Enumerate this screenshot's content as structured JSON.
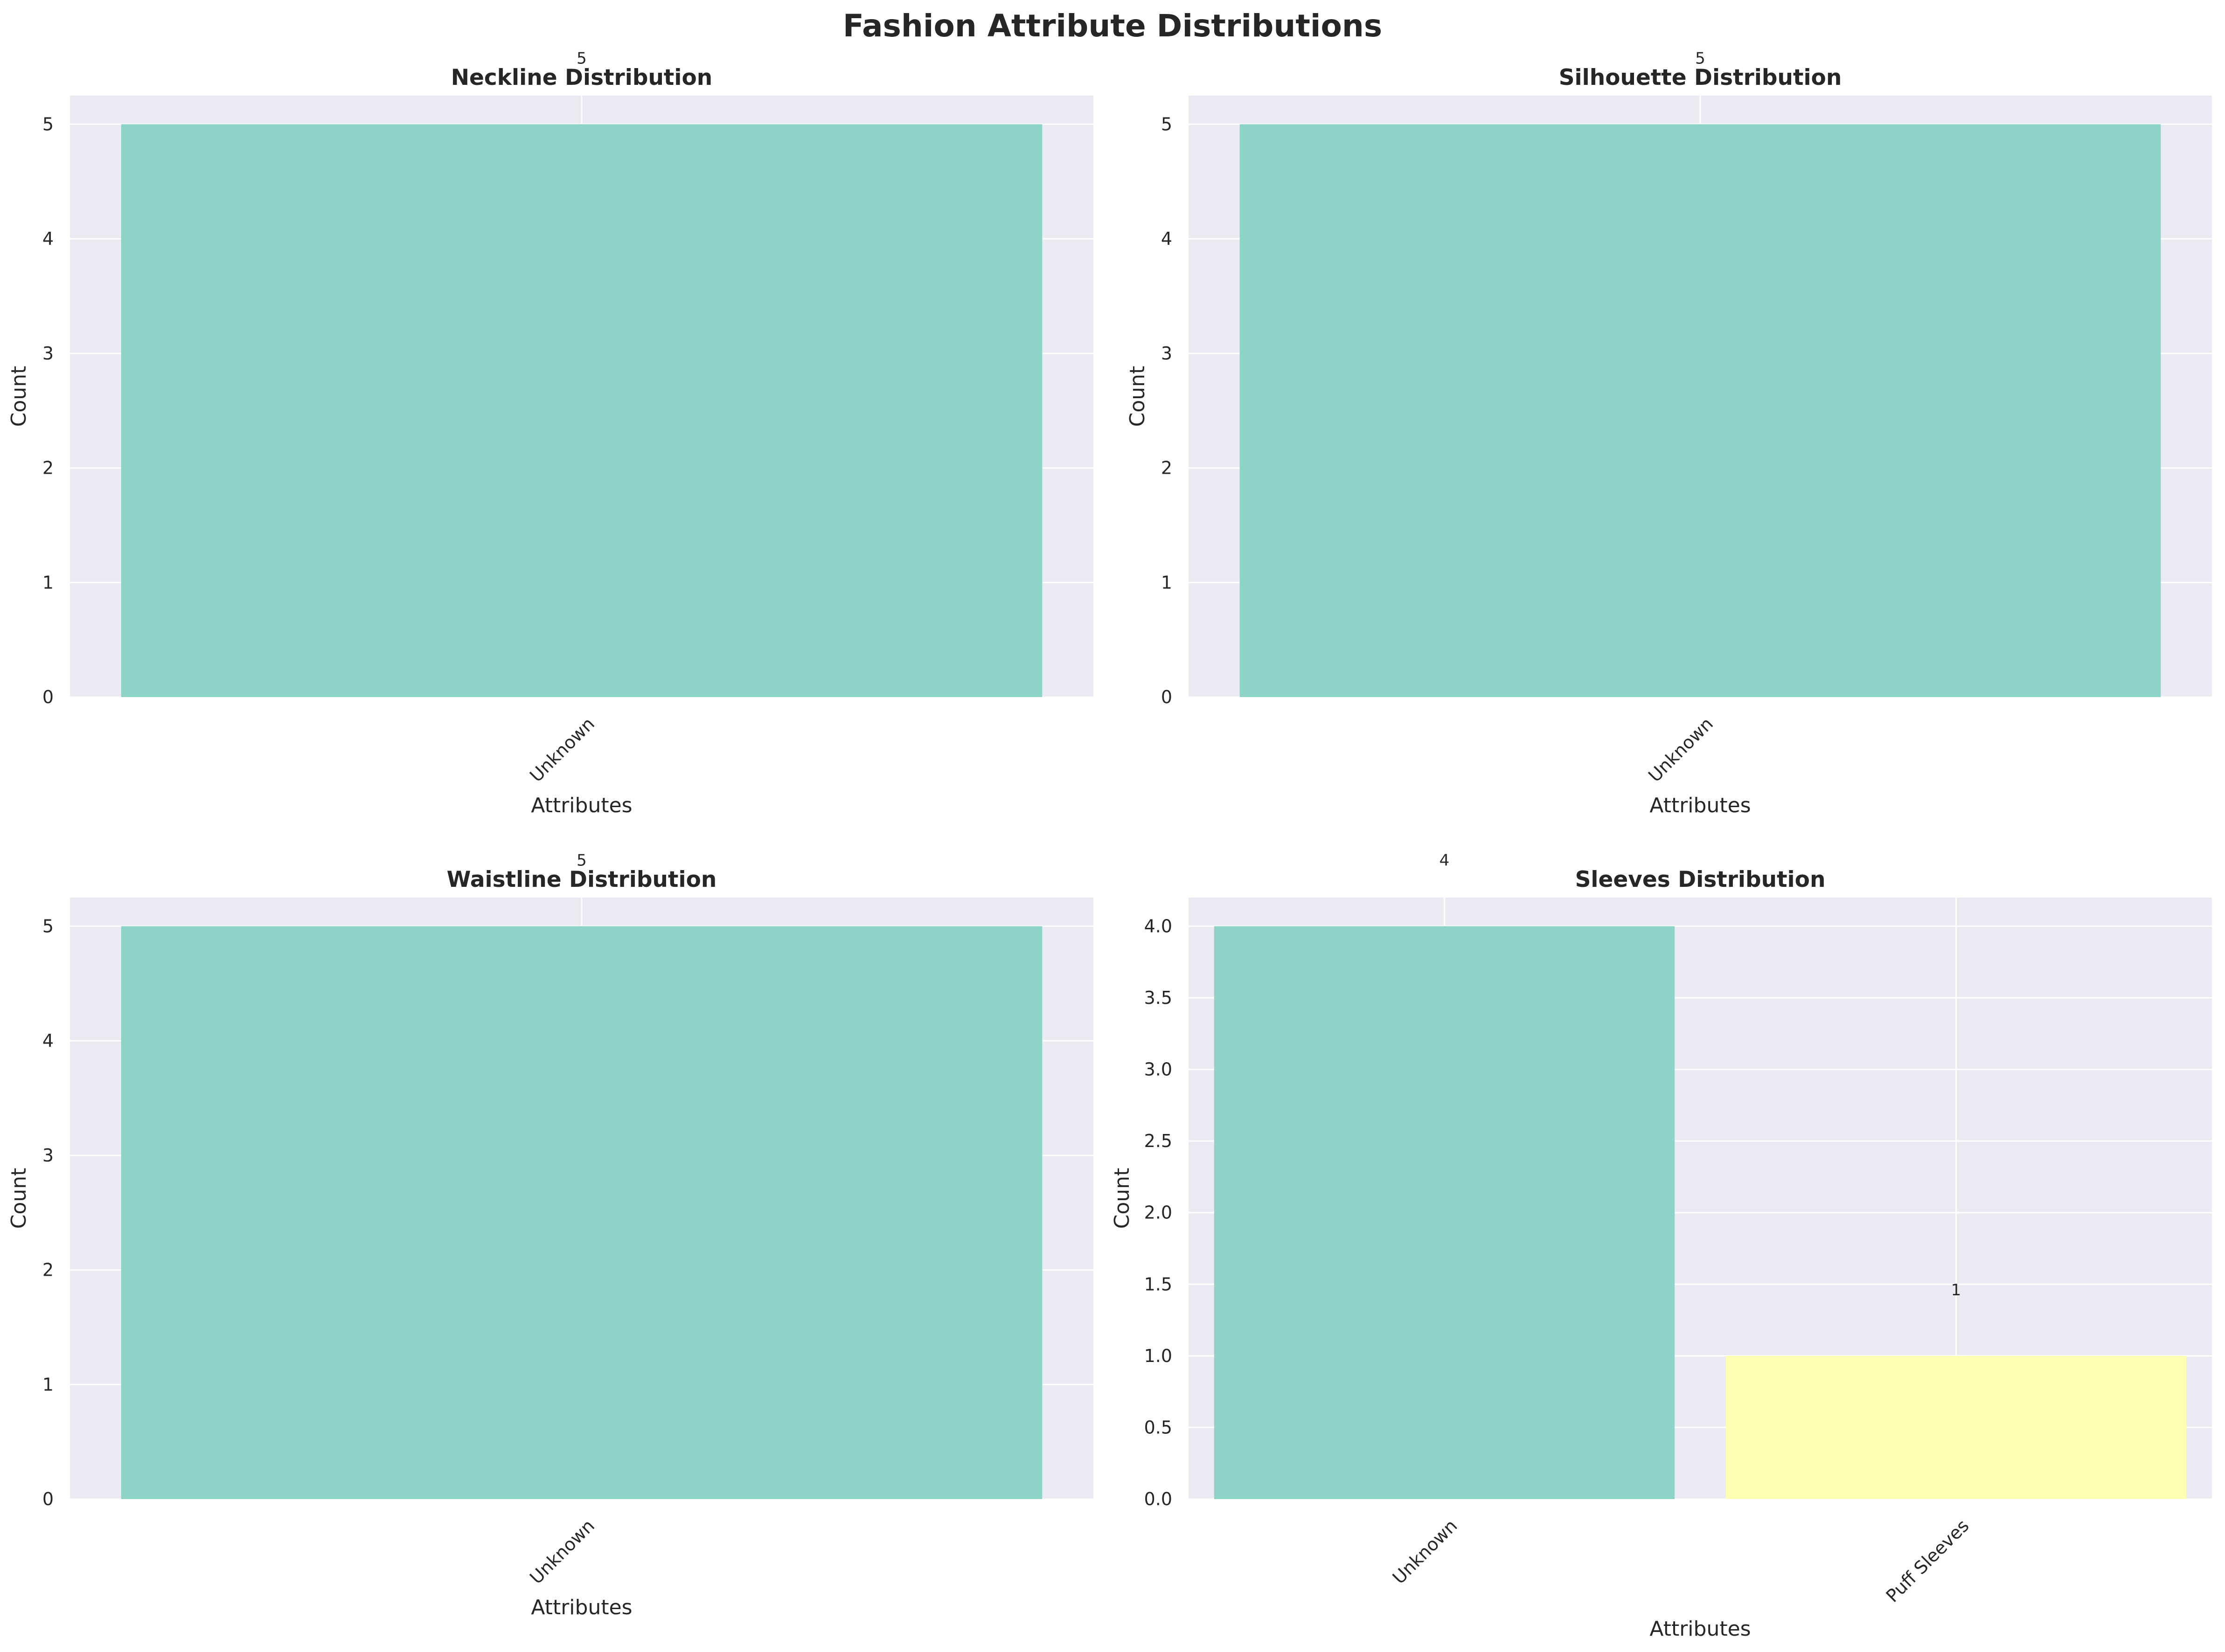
{
  "figure": {
    "title": "Fashion Attribute Distributions"
  },
  "style": {
    "plot_background": "#EAEAF2",
    "grid_color": "#FFFFFF",
    "text_color": "#262626",
    "bar_colors": [
      "#8DD3C7",
      "#FFFFB3"
    ]
  },
  "chart_data": [
    {
      "type": "bar",
      "title": "Neckline Distribution",
      "xlabel": "Attributes",
      "ylabel": "Count",
      "categories": [
        "Unknown"
      ],
      "values": [
        5
      ],
      "value_labels": [
        "5"
      ],
      "ylim": [
        0,
        5.25
      ],
      "yticks": [
        "0",
        "1",
        "2",
        "3",
        "4",
        "5"
      ],
      "grid": true
    },
    {
      "type": "bar",
      "title": "Silhouette Distribution",
      "xlabel": "Attributes",
      "ylabel": "Count",
      "categories": [
        "Unknown"
      ],
      "values": [
        5
      ],
      "value_labels": [
        "5"
      ],
      "ylim": [
        0,
        5.25
      ],
      "yticks": [
        "0",
        "1",
        "2",
        "3",
        "4",
        "5"
      ],
      "grid": true
    },
    {
      "type": "bar",
      "title": "Waistline Distribution",
      "xlabel": "Attributes",
      "ylabel": "Count",
      "categories": [
        "Unknown"
      ],
      "values": [
        5
      ],
      "value_labels": [
        "5"
      ],
      "ylim": [
        0,
        5.25
      ],
      "yticks": [
        "0",
        "1",
        "2",
        "3",
        "4",
        "5"
      ],
      "grid": true
    },
    {
      "type": "bar",
      "title": "Sleeves Distribution",
      "xlabel": "Attributes",
      "ylabel": "Count",
      "categories": [
        "Unknown",
        "Puff Sleeves"
      ],
      "values": [
        4,
        1
      ],
      "value_labels": [
        "4",
        "1"
      ],
      "ylim": [
        0,
        4.2
      ],
      "yticks": [
        "0.0",
        "0.5",
        "1.0",
        "1.5",
        "2.0",
        "2.5",
        "3.0",
        "3.5",
        "4.0"
      ],
      "grid": true
    }
  ]
}
